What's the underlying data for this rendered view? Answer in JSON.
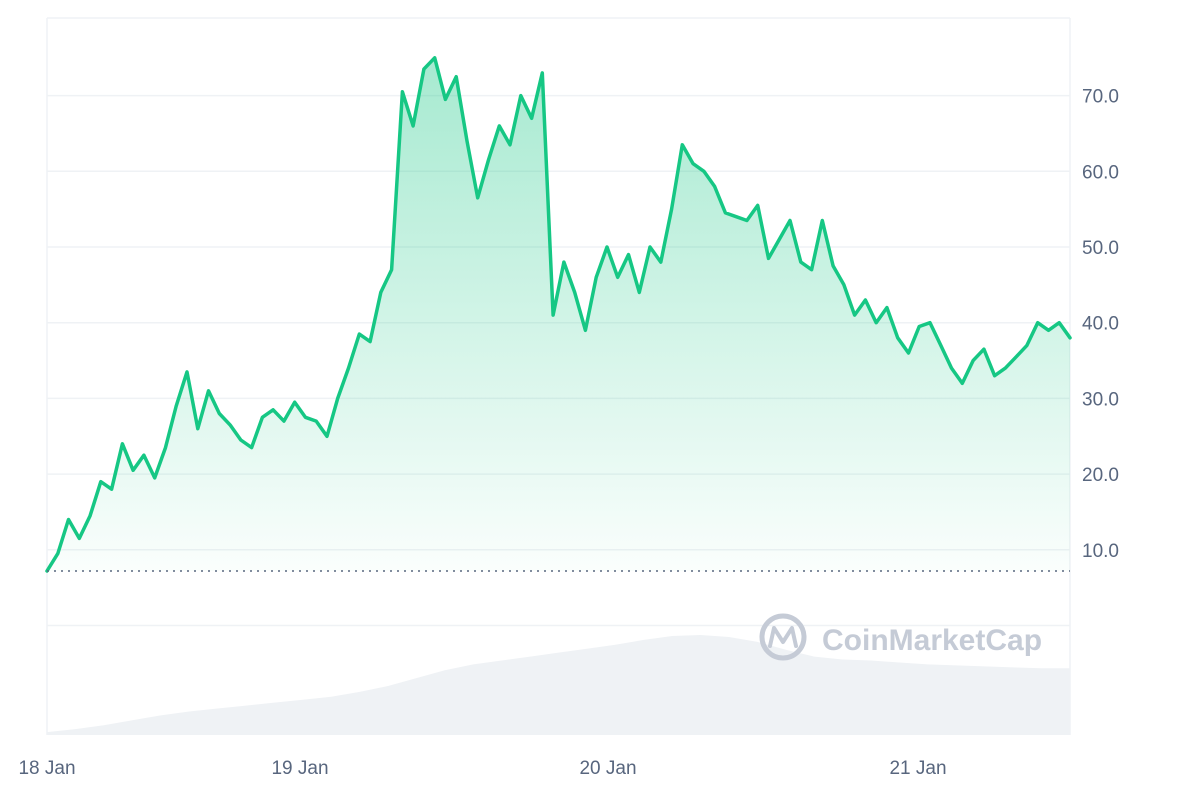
{
  "chart_data": {
    "type": "area",
    "title": "",
    "xlabel": "",
    "ylabel": "",
    "x_ticks": [
      "18 Jan",
      "19 Jan",
      "20 Jan",
      "21 Jan"
    ],
    "y_ticks": [
      "10.0",
      "20.0",
      "30.0",
      "40.0",
      "50.0",
      "60.0",
      "70.0"
    ],
    "ylim": [
      0,
      80
    ],
    "baseline_value": 7.2,
    "grid": true,
    "legend": "none",
    "series": [
      {
        "values": [
          7.2,
          9.5,
          14,
          11.5,
          14.5,
          19,
          18,
          24,
          20.5,
          22.5,
          19.5,
          23.5,
          29,
          33.5,
          26,
          31,
          28,
          26.5,
          24.5,
          23.5,
          27.5,
          28.5,
          27,
          29.5,
          27.5,
          27,
          25,
          30,
          34,
          38.5,
          37.5,
          44,
          47,
          70.5,
          66,
          73.5,
          75,
          69.5,
          72.5,
          64,
          56.5,
          61.5,
          66,
          63.5,
          70,
          67,
          73,
          41,
          48,
          44,
          39,
          46,
          50,
          46,
          49,
          44,
          50,
          48,
          55,
          63.5,
          61,
          60,
          58,
          54.5,
          54,
          53.5,
          55.5,
          48.5,
          51,
          53.5,
          48,
          47,
          53.5,
          47.5,
          45,
          41,
          43,
          40,
          42,
          38,
          36,
          39.5,
          40,
          37,
          34,
          32,
          35,
          36.5,
          33,
          34,
          35.5,
          37,
          40,
          39,
          40,
          38
        ]
      }
    ],
    "volume_values": [
      0.3,
      0.6,
      1.0,
      1.5,
      2.0,
      2.4,
      2.7,
      3.0,
      3.3,
      3.6,
      3.9,
      4.4,
      5.0,
      5.8,
      6.6,
      7.2,
      7.6,
      8.0,
      8.4,
      8.8,
      9.2,
      9.7,
      10.1,
      10.2,
      10.0,
      9.5,
      8.7,
      8.0,
      7.7,
      7.6,
      7.4,
      7.2,
      7.1,
      7.0,
      6.9,
      6.8,
      6.8
    ],
    "colors": {
      "line": "#16c784",
      "grid": "#eff2f5",
      "volume": "#eff2f5",
      "baseline": "#58667e"
    }
  },
  "watermark": {
    "text": "CoinMarketCap",
    "icon": "coinmarketcap-logo-icon"
  }
}
